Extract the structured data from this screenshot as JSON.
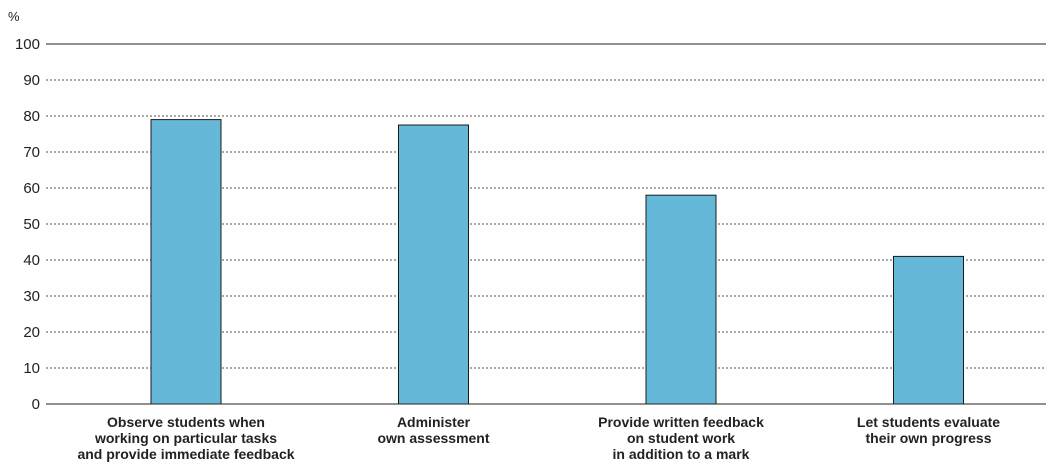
{
  "chart_data": {
    "type": "bar",
    "ylabel": "%",
    "ylim": [
      0,
      100
    ],
    "yticks": [
      0,
      10,
      20,
      30,
      40,
      50,
      60,
      70,
      80,
      90,
      100
    ],
    "grid": true,
    "bar_color": "#65B8D8",
    "categories": [
      [
        "Observe students when",
        "working on particular tasks",
        "and provide immediate feedback"
      ],
      [
        "Administer",
        "own assessment"
      ],
      [
        "Provide written feedback",
        "on student work",
        "in addition to a mark"
      ],
      [
        "Let students evaluate",
        "their own progress"
      ]
    ],
    "values": [
      79,
      77.5,
      58,
      41
    ]
  }
}
